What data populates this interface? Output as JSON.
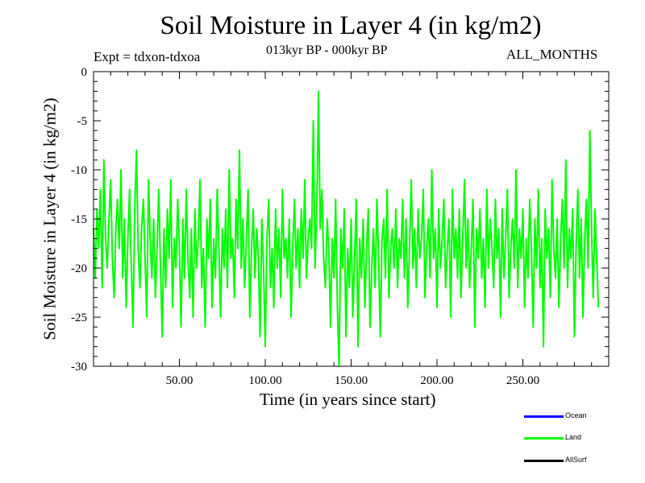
{
  "chart_data": {
    "type": "line",
    "title": "Soil Moisture in Layer 4 (in kg/m2)",
    "subtitle": "013kyr BP - 000kyr BP",
    "experiment": "Expt = tdxon-tdxoa",
    "period": "ALL_MONTHS",
    "xlabel": "Time (in years since start)",
    "ylabel": "Soil Moisture in Layer 4 (in kg/m2)",
    "xlim": [
      0,
      300
    ],
    "ylim": [
      -30,
      0
    ],
    "x_ticks": [
      50,
      100,
      150,
      200,
      250
    ],
    "x_tick_labels": [
      "50.00",
      "100.00",
      "150.00",
      "200.00",
      "250.00"
    ],
    "y_ticks": [
      0,
      -5,
      -10,
      -15,
      -20,
      -25,
      -30
    ],
    "y_tick_labels": [
      "0",
      "-5",
      "-10",
      "-15",
      "-20",
      "-25",
      "-30"
    ],
    "grid": false,
    "legend_position": "bottom-right",
    "series": [
      {
        "name": "Ocean",
        "color": "#0000ff",
        "values": []
      },
      {
        "name": "Land",
        "color": "#00ff00",
        "x_start": 0,
        "x_step": 1,
        "values": [
          -16,
          -21,
          -14,
          -18,
          -12,
          -22,
          -9,
          -17,
          -20,
          -15,
          -11,
          -19,
          -23,
          -16,
          -13,
          -18,
          -10,
          -21,
          -15,
          -24,
          -17,
          -12,
          -20,
          -26,
          -14,
          -8,
          -18,
          -22,
          -16,
          -13,
          -19,
          -25,
          -11,
          -17,
          -21,
          -15,
          -23,
          -18,
          -12,
          -20,
          -27,
          -16,
          -22,
          -14,
          -19,
          -11,
          -24,
          -17,
          -20,
          -13,
          -18,
          -26,
          -15,
          -21,
          -12,
          -19,
          -23,
          -16,
          -25,
          -14,
          -20,
          -17,
          -11,
          -22,
          -18,
          -26,
          -15,
          -19,
          -13,
          -24,
          -17,
          -21,
          -12,
          -18,
          -25,
          -16,
          -20,
          -14,
          -22,
          -10,
          -19,
          -17,
          -23,
          -13,
          -18,
          -8,
          -20,
          -15,
          -22,
          -17,
          -12,
          -25,
          -18,
          -14,
          -21,
          -16,
          -19,
          -27,
          -15,
          -20,
          -28,
          -17,
          -13,
          -22,
          -18,
          -24,
          -14,
          -20,
          -16,
          -23,
          -12,
          -19,
          -17,
          -21,
          -15,
          -25,
          -18,
          -13,
          -20,
          -16,
          -22,
          -14,
          -19,
          -11,
          -21,
          -17,
          -15,
          -18,
          -5,
          -20,
          -14,
          -2,
          -16,
          -12,
          -19,
          -22,
          -15,
          -18,
          -26,
          -17,
          -21,
          -13,
          -24,
          -30,
          -16,
          -20,
          -14,
          -27,
          -18,
          -22,
          -15,
          -25,
          -19,
          -13,
          -28,
          -17,
          -21,
          -15,
          -24,
          -18,
          -14,
          -26,
          -20,
          -16,
          -22,
          -13,
          -19,
          -27,
          -17,
          -15,
          -21,
          -12,
          -23,
          -18,
          -16,
          -20,
          -14,
          -22,
          -17,
          -19,
          -13,
          -21,
          -15,
          -24,
          -18,
          -11,
          -20,
          -16,
          -22,
          -14,
          -19,
          -17,
          -12,
          -23,
          -18,
          -15,
          -21,
          -10,
          -19,
          -16,
          -24,
          -14,
          -20,
          -17,
          -13,
          -22,
          -18,
          -15,
          -25,
          -12,
          -19,
          -16,
          -21,
          -14,
          -23,
          -17,
          -11,
          -20,
          -15,
          -22,
          -18,
          -13,
          -26,
          -16,
          -19,
          -14,
          -21,
          -17,
          -24,
          -12,
          -20,
          -15,
          -18,
          -22,
          -13,
          -19,
          -16,
          -25,
          -14,
          -21,
          -17,
          -12,
          -23,
          -18,
          -15,
          -20,
          -10,
          -22,
          -16,
          -19,
          -14,
          -24,
          -17,
          -21,
          -13,
          -18,
          -26,
          -15,
          -20,
          -12,
          -22,
          -17,
          -28,
          -14,
          -19,
          -16,
          -23,
          -11,
          -18,
          -21,
          -15,
          -24,
          -17,
          -13,
          -20,
          -9,
          -22,
          -16,
          -19,
          -14,
          -27,
          -18,
          -12,
          -21,
          -15,
          -25,
          -17,
          -13,
          -20,
          -6,
          -16,
          -23,
          -14,
          -19,
          -24
        ]
      },
      {
        "name": "AllSurf",
        "color": "#000000",
        "values": []
      }
    ]
  }
}
